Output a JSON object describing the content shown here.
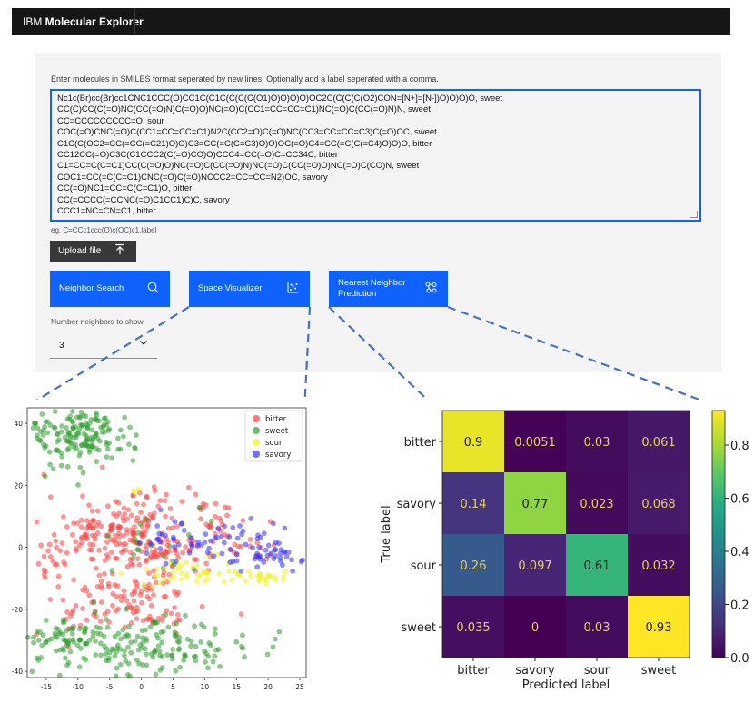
{
  "app": {
    "brand_prefix": "IBM ",
    "brand_name": "Molecular Explorer"
  },
  "form": {
    "instructions": "Enter molecules in SMILES format seperated by new lines. Optionally add a label seperated with a comma.",
    "lines": [
      "Nc1c(Br)cc(Br)cc1CNC1CCC(O)CC1C(C1C(C(C(C(O1)O)O)O)O)OC2C(C(C(C(O2)CON=[N+]=[N-])O)O)O)O, sweet",
      "CC(C)CC(C(=O)NC(CC(=O)N)C(=O)O)NC(=O)C(CC1=CC=CC=C1)NC(=O)C(CC(=O)N)N, sweet",
      "CC=CCCCCCCCC=O, sour",
      "COC(=O)CNC(=O)C(CC1=CC=CC=C1)N2C(CC2=O)C(=O)NC(CC3=CC=CC=C3)C(=O)OC, sweet",
      "C1C(C(OC2=CC(=CC(=C21)O)O)C3=CC(=C(C=C3)O)O)OC(=O)C4=CC(=C(C(=C4)O)O)O, bitter",
      "CC12CC(=O)C3C(C1CCC2(C(=O)CO)O)CCC4=CC(=O)C=CC34C, bitter",
      "C1=CC=C(C=C1)CC(C(=O)O)NC(=O)C(CC(=O)N)NC(=O)C(CC(=O)O)NC(=O)C(CO)N, sweet",
      "COC1=CC(=C(C=C1)CNC(=O)C(=O)NCCC2=CC=CC=N2)OC, savory",
      "CC(=O)NC1=CC=C(C=C1)O, bitter",
      "CC(=CCCC(=CCNC(=O)C1CC1)C)C, savory",
      "CCC1=NC=CN=C1, bitter"
    ],
    "helper": "eg. C=CCc1ccc(O)c(OC)c1,label",
    "upload_label": "Upload file",
    "upload_icon": "upload-icon",
    "number_label": "Number neighbors to show",
    "number_value": "3"
  },
  "buttons": {
    "neighbor_search": "Neighbor Search",
    "space_visualizer": "Space Visualizer",
    "nn_prediction_line1": "Nearest Neighbor",
    "nn_prediction_line2": "Prediction"
  },
  "colors": {
    "header_bg": "#161616",
    "primary": "#0f62fe",
    "panel_bg": "#f4f4f4",
    "upload_bg": "#393939",
    "callout": "#4472c4"
  },
  "chart_data": [
    {
      "type": "scatter",
      "xlim": [
        -18,
        26
      ],
      "ylim": [
        -42,
        45
      ],
      "x_ticks": [
        -15,
        -10,
        -5,
        0,
        5,
        10,
        15,
        20,
        25
      ],
      "y_ticks": [
        -40,
        -20,
        0,
        20,
        40
      ],
      "legend_position": "top-right",
      "series": [
        {
          "name": "bitter",
          "color": "#ff4040",
          "clusters": [
            [
              -3,
              6,
              6,
              6,
              170
            ],
            [
              -3,
              -14,
              5,
              4,
              70
            ],
            [
              4,
              -3,
              4,
              4,
              60
            ],
            [
              0,
              -21,
              5,
              3,
              35
            ],
            [
              12,
              8,
              3,
              3,
              25
            ],
            [
              -14,
              0,
              3,
              2,
              12
            ],
            [
              -15,
              -6,
              2,
              2,
              10
            ],
            [
              -11,
              -24,
              2,
              2,
              8
            ],
            [
              17,
              -1,
              3,
              3,
              15
            ]
          ]
        },
        {
          "name": "sweet",
          "color": "#2e9c2e",
          "clusters": [
            [
              -10,
              36,
              4,
              5,
              160
            ],
            [
              0,
              -32,
              8,
              5,
              180
            ],
            [
              -13,
              -29,
              2.5,
              2.5,
              45
            ],
            [
              2,
              2,
              4,
              6,
              20
            ]
          ]
        },
        {
          "name": "sour",
          "color": "#f0f020",
          "clusters": [
            [
              19,
              -10,
              3,
              1.5,
              25
            ],
            [
              8,
              -8,
              5,
              2,
              40
            ],
            [
              -1,
              18,
              0.5,
              0.5,
              3
            ]
          ]
        },
        {
          "name": "savory",
          "color": "#3030ff",
          "clusters": [
            [
              12,
              1,
              5,
              4,
              45
            ],
            [
              21,
              -2,
              2.5,
              3,
              30
            ],
            [
              5,
              3,
              3,
              3,
              20
            ]
          ]
        }
      ]
    },
    {
      "type": "heatmap",
      "xlabel": "Predicted label",
      "ylabel": "True label",
      "x_categories": [
        "bitter",
        "savory",
        "sour",
        "sweet"
      ],
      "y_categories": [
        "bitter",
        "savory",
        "sour",
        "sweet"
      ],
      "values": [
        [
          0.9,
          0.0051,
          0.03,
          0.061
        ],
        [
          0.14,
          0.77,
          0.023,
          0.068
        ],
        [
          0.26,
          0.097,
          0.61,
          0.032
        ],
        [
          0.035,
          0,
          0.03,
          0.93
        ]
      ],
      "colorbar_ticks": [
        0.0,
        0.2,
        0.4,
        0.6,
        0.8
      ],
      "colormap": "viridis"
    }
  ]
}
